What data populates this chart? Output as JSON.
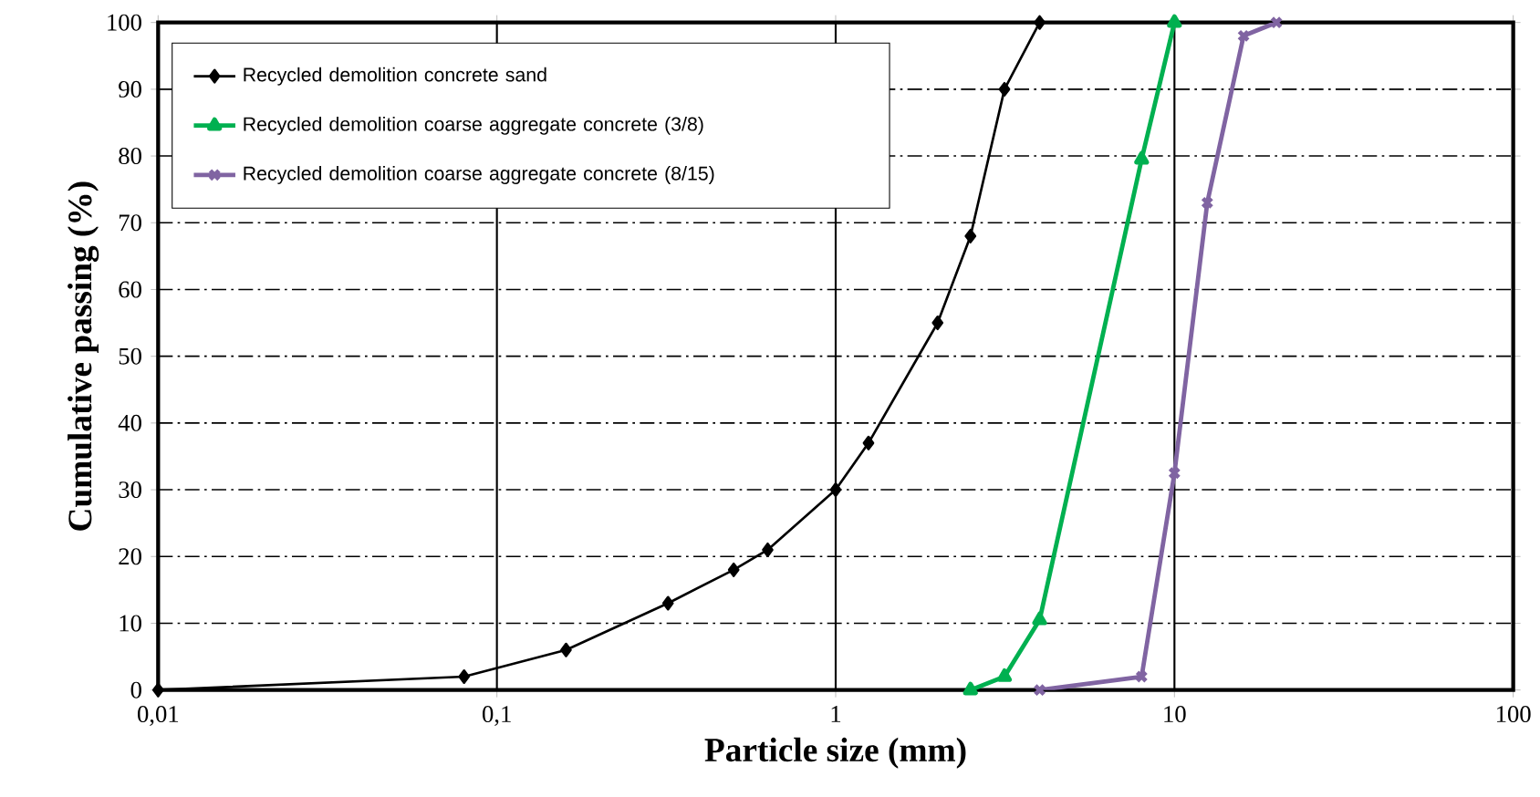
{
  "chart_data": {
    "type": "line",
    "xlabel": "Particle size (mm)",
    "ylabel": "Cumulative passing (%)",
    "log": "x",
    "xlim": [
      0.01,
      100
    ],
    "xticks": [
      {
        "value": 0.01,
        "label": "0,01"
      },
      {
        "value": 0.1,
        "label": "0,1"
      },
      1,
      10,
      100
    ],
    "ylim": [
      0,
      100
    ],
    "yticks": [
      0,
      10,
      20,
      30,
      40,
      50,
      60,
      70,
      80,
      90,
      100
    ],
    "grid": true,
    "legend": "top left",
    "line_style": "solid",
    "series": [
      {
        "name": "Recycled demolition concrete sand",
        "color": "#000000",
        "marker": "diamond",
        "x": [
          0.01,
          0.08,
          0.16,
          0.32,
          0.5,
          0.63,
          1,
          1.25,
          2,
          2.5,
          3.15,
          4
        ],
        "values": [
          0,
          2,
          6,
          13,
          18,
          21,
          30,
          37,
          55,
          68,
          90,
          100
        ]
      },
      {
        "name": "Recycled demolition coarse aggregate concrete (3/8)",
        "color": "#00b050",
        "marker": "triangle",
        "x": [
          2.5,
          3.15,
          4,
          8,
          10
        ],
        "values": [
          0,
          2,
          10.5,
          79.5,
          100
        ]
      },
      {
        "name": "Recycled demolition coarse aggregate concrete (8/15)",
        "color": "#8064a2",
        "marker": "cross",
        "x": [
          4,
          8,
          10,
          12.5,
          16,
          20
        ],
        "values": [
          0,
          2,
          32.5,
          73,
          98,
          100
        ]
      }
    ]
  }
}
